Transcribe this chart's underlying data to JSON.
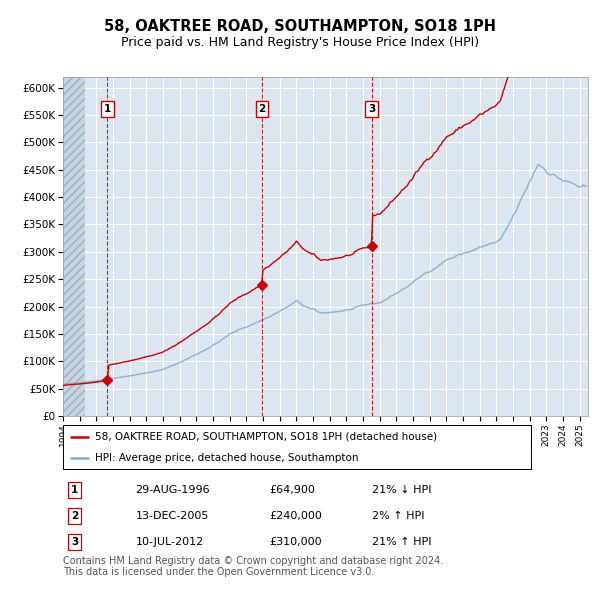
{
  "title": "58, OAKTREE ROAD, SOUTHAMPTON, SO18 1PH",
  "subtitle": "Price paid vs. HM Land Registry's House Price Index (HPI)",
  "legend_property": "58, OAKTREE ROAD, SOUTHAMPTON, SO18 1PH (detached house)",
  "legend_hpi": "HPI: Average price, detached house, Southampton",
  "transactions": [
    {
      "num": 1,
      "date_str": "29-AUG-1996",
      "date_x": 1996.66,
      "price": 64900,
      "hpi_pct": "21% ↓ HPI"
    },
    {
      "num": 2,
      "date_str": "13-DEC-2005",
      "date_x": 2005.95,
      "price": 240000,
      "hpi_pct": "2% ↑ HPI"
    },
    {
      "num": 3,
      "date_str": "10-JUL-2012",
      "date_x": 2012.52,
      "price": 310000,
      "hpi_pct": "21% ↑ HPI"
    }
  ],
  "ylabel_ticks": [
    "£0",
    "£50K",
    "£100K",
    "£150K",
    "£200K",
    "£250K",
    "£300K",
    "£350K",
    "£400K",
    "£450K",
    "£500K",
    "£550K",
    "£600K"
  ],
  "ytick_values": [
    0,
    50000,
    100000,
    150000,
    200000,
    250000,
    300000,
    350000,
    400000,
    450000,
    500000,
    550000,
    600000
  ],
  "ylim": [
    0,
    620000
  ],
  "xlim_start": 1994.0,
  "xlim_end": 2025.5,
  "bg_color": "#dce6f1",
  "line_color_property": "#cc0000",
  "line_color_hpi": "#88aacc",
  "grid_color": "#ffffff",
  "copyright_text": "Contains HM Land Registry data © Crown copyright and database right 2024.\nThis data is licensed under the Open Government Licence v3.0.",
  "footnote_fontsize": 7.0,
  "title_fontsize": 10.5,
  "subtitle_fontsize": 9.0
}
